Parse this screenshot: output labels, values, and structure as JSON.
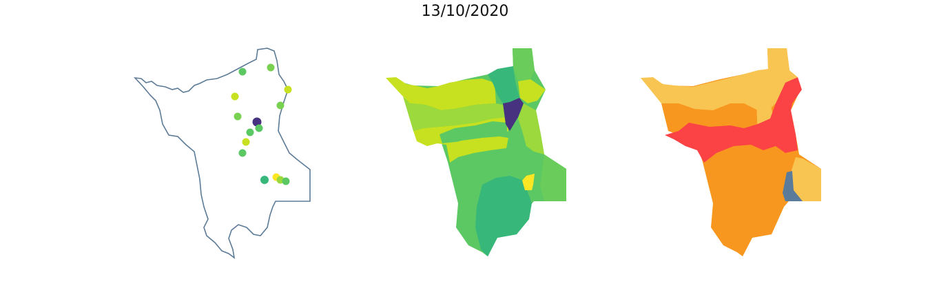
{
  "title": "13/10/2020",
  "colors": {
    "outline": "#5b7a96",
    "viridis_dark": "#46327e",
    "viridis_teal": "#38b77a",
    "viridis_green": "#5cc863",
    "viridis_light": "#9bd93c",
    "viridis_lime": "#c7e020",
    "viridis_yellow": "#fde725",
    "risk_yellow": "#f8c552",
    "risk_orange": "#f89720",
    "risk_red": "#fb4245",
    "risk_blue": "#5a7c9a"
  },
  "panels": [
    {
      "name": "station-points-map"
    },
    {
      "name": "basin-index-map"
    },
    {
      "name": "basin-risk-map"
    }
  ]
}
